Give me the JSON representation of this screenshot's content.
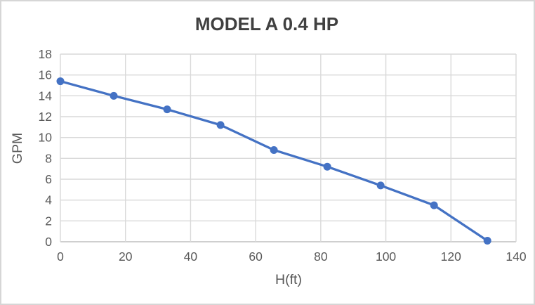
{
  "chart_data": {
    "type": "line",
    "title": "MODEL A 0.4 HP",
    "xlabel": "H(ft)",
    "ylabel": "GPM",
    "x": [
      0,
      16.4,
      32.8,
      49.2,
      65.6,
      82,
      98.4,
      114.8,
      131.2
    ],
    "series": [
      {
        "name": "MODEL A 0.4 HP",
        "values": [
          15.4,
          14,
          12.7,
          11.2,
          8.8,
          7.2,
          5.4,
          3.5,
          0.1
        ]
      }
    ],
    "xlim": [
      0,
      140
    ],
    "ylim": [
      0,
      18
    ],
    "x_ticks": [
      0,
      20,
      40,
      60,
      80,
      100,
      120,
      140
    ],
    "y_ticks": [
      0,
      2,
      4,
      6,
      8,
      10,
      12,
      14,
      16,
      18
    ],
    "grid": true,
    "legend": false,
    "marker": "circle",
    "colors": {
      "line": "#4472C4",
      "marker": "#4472C4",
      "gridline": "#D9D9D9",
      "axis_line": "#BFBFBF",
      "tick_label": "#595959",
      "axis_title": "#595959",
      "title": "#404040",
      "background": "#FFFFFF",
      "border": "#D6D6D6"
    }
  }
}
